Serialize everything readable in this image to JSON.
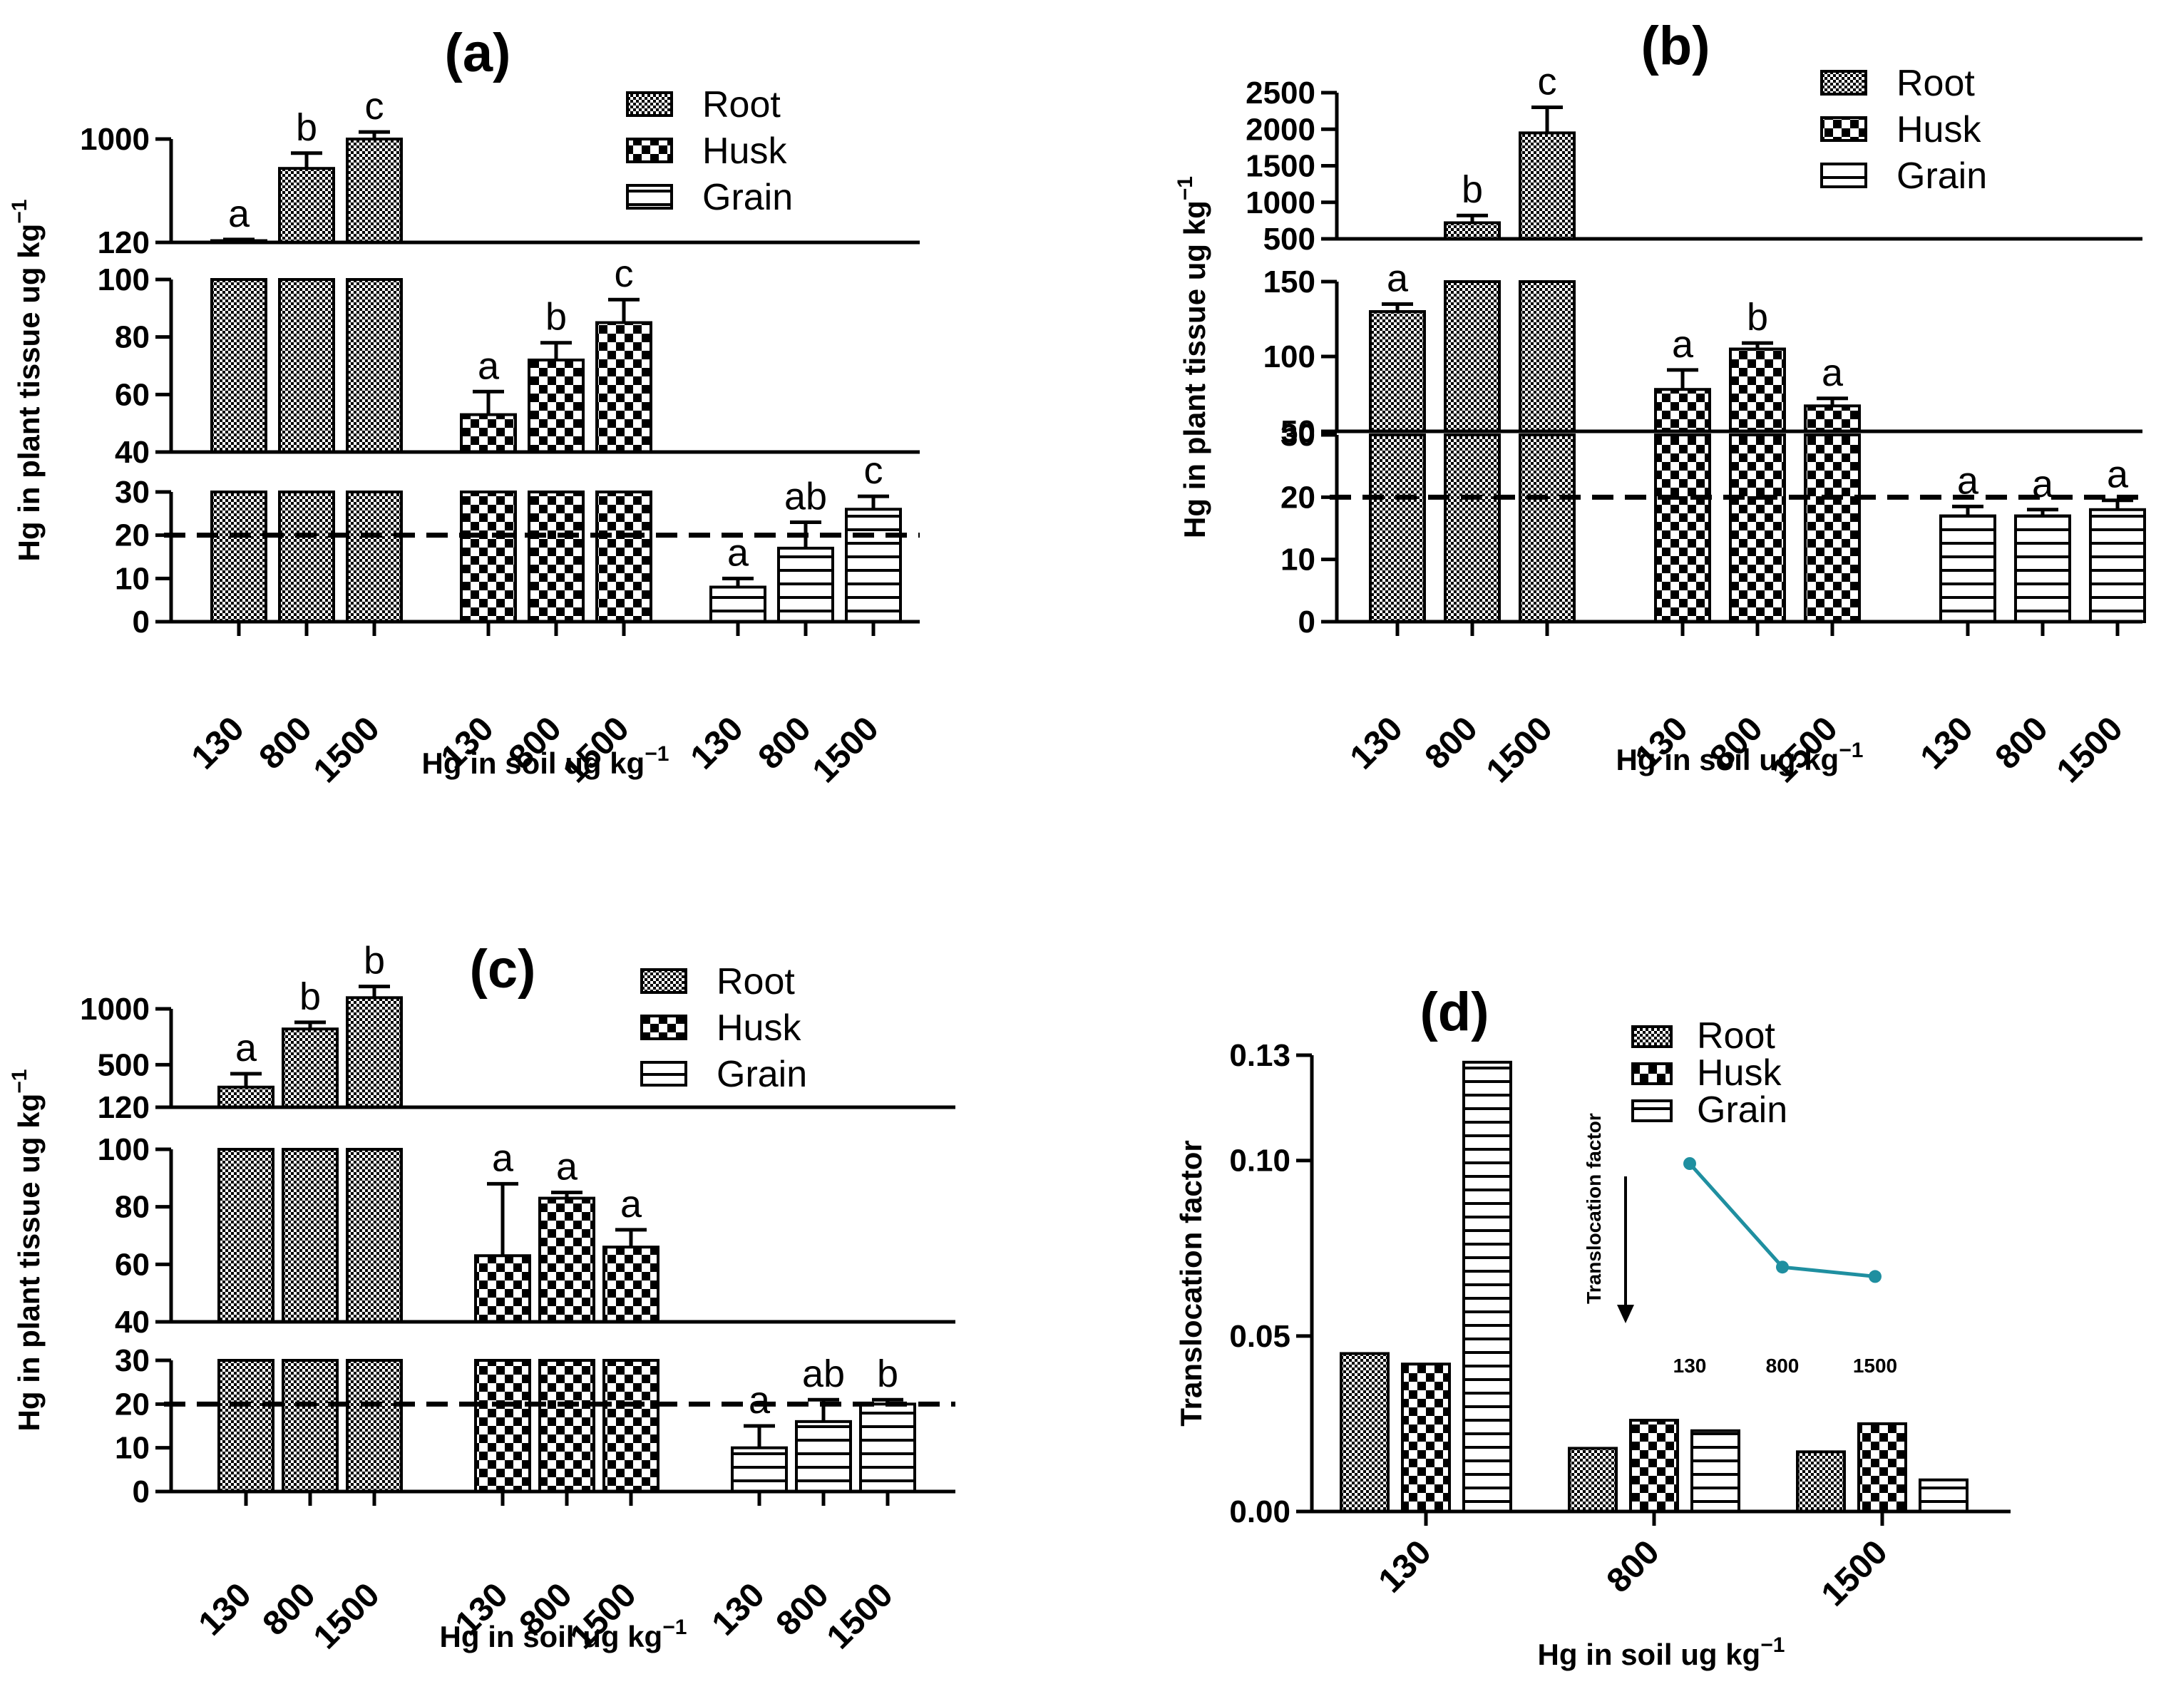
{
  "chart_data": [
    {
      "id": "a",
      "type": "bar",
      "title": "(a)",
      "xlabel": "Hg in soil ug kg",
      "xlabel_sup": "−1",
      "ylabel": "Hg in plant tissue ug kg",
      "ylabel_sup": "−1",
      "legend": [
        "Root",
        "Husk",
        "Grain"
      ],
      "groups": [
        {
          "name": "Root",
          "categories": [
            "130",
            "800",
            "1500"
          ],
          "values": [
            135,
            750,
            1000
          ],
          "errors": [
            10,
            130,
            60
          ],
          "letters": [
            "a",
            "b",
            "c"
          ]
        },
        {
          "name": "Husk",
          "categories": [
            "130",
            "800",
            "1500"
          ],
          "values": [
            53,
            72,
            85
          ],
          "errors": [
            8,
            6,
            8
          ],
          "letters": [
            "a",
            "b",
            "c"
          ]
        },
        {
          "name": "Grain",
          "categories": [
            "130",
            "800",
            "1500"
          ],
          "values": [
            8,
            17,
            26
          ],
          "errors": [
            2,
            6,
            3
          ],
          "letters": [
            "a",
            "ab",
            "c"
          ]
        }
      ],
      "y_segments": [
        {
          "range": [
            0,
            30
          ],
          "ticks": [
            "0",
            "10",
            "20",
            "30"
          ]
        },
        {
          "range": [
            40,
            100
          ],
          "ticks": [
            "40",
            "60",
            "80",
            "100"
          ]
        },
        {
          "range": [
            120,
            1000
          ],
          "ticks": [
            "120",
            "1000"
          ]
        }
      ],
      "reference_line": 20
    },
    {
      "id": "b",
      "type": "bar",
      "title": "(b)",
      "xlabel": "Hg in soil ug kg",
      "xlabel_sup": "−1",
      "ylabel": "Hg in plant tissue ug kg",
      "ylabel_sup": "−1",
      "legend": [
        "Root",
        "Husk",
        "Grain"
      ],
      "groups": [
        {
          "name": "Root",
          "categories": [
            "130",
            "800",
            "1500"
          ],
          "values": [
            130,
            720,
            1950
          ],
          "errors": [
            5,
            100,
            350
          ],
          "letters": [
            "a",
            "b",
            "c"
          ]
        },
        {
          "name": "Husk",
          "categories": [
            "130",
            "800",
            "1500"
          ],
          "values": [
            78,
            105,
            67
          ],
          "errors": [
            13,
            4,
            5
          ],
          "letters": [
            "a",
            "b",
            "a"
          ]
        },
        {
          "name": "Grain",
          "categories": [
            "130",
            "800",
            "1500"
          ],
          "values": [
            17,
            17,
            18
          ],
          "errors": [
            1.5,
            1,
            1.5
          ],
          "letters": [
            "a",
            "a",
            "a"
          ]
        }
      ],
      "y_segments": [
        {
          "range": [
            0,
            30
          ],
          "ticks": [
            "0",
            "10",
            "20",
            "30"
          ]
        },
        {
          "range": [
            50,
            150
          ],
          "ticks": [
            "50",
            "100",
            "150"
          ]
        },
        {
          "range": [
            500,
            2500
          ],
          "ticks": [
            "500",
            "1000",
            "1500",
            "2000",
            "2500"
          ]
        }
      ],
      "reference_line": 20
    },
    {
      "id": "c",
      "type": "bar",
      "title": "(c)",
      "xlabel": "Hg in soil ug kg",
      "xlabel_sup": "−1",
      "ylabel": "Hg in plant tissue ug kg",
      "ylabel_sup": "−1",
      "legend": [
        "Root",
        "Husk",
        "Grain"
      ],
      "groups": [
        {
          "name": "Root",
          "categories": [
            "130",
            "800",
            "1500"
          ],
          "values": [
            300,
            820,
            1100
          ],
          "errors": [
            120,
            60,
            100
          ],
          "letters": [
            "a",
            "b",
            "b"
          ]
        },
        {
          "name": "Husk",
          "categories": [
            "130",
            "800",
            "1500"
          ],
          "values": [
            63,
            83,
            66
          ],
          "errors": [
            25,
            2,
            6
          ],
          "letters": [
            "a",
            "a",
            "a"
          ]
        },
        {
          "name": "Grain",
          "categories": [
            "130",
            "800",
            "1500"
          ],
          "values": [
            10,
            16,
            20
          ],
          "errors": [
            5,
            5,
            1
          ],
          "letters": [
            "a",
            "ab",
            "b"
          ]
        }
      ],
      "y_segments": [
        {
          "range": [
            0,
            30
          ],
          "ticks": [
            "0",
            "10",
            "20",
            "30"
          ]
        },
        {
          "range": [
            40,
            100
          ],
          "ticks": [
            "40",
            "60",
            "80",
            "100"
          ]
        },
        {
          "range": [
            120,
            1000
          ],
          "ticks": [
            "120",
            "500",
            "1000"
          ]
        }
      ],
      "reference_line": 20
    },
    {
      "id": "d",
      "type": "bar",
      "title": "(d)",
      "xlabel": "Hg in soil ug kg",
      "xlabel_sup": "−1",
      "ylabel": "Translocation factor",
      "legend": [
        "Root",
        "Husk",
        "Grain"
      ],
      "categories": [
        "130",
        "800",
        "1500"
      ],
      "series": [
        {
          "name": "Root",
          "values": [
            0.045,
            0.018,
            0.017
          ]
        },
        {
          "name": "Husk",
          "values": [
            0.042,
            0.026,
            0.025
          ]
        },
        {
          "name": "Grain",
          "values": [
            0.128,
            0.023,
            0.009
          ]
        }
      ],
      "ylim": [
        0,
        0.13
      ],
      "yticks": [
        "0.00",
        "0.05",
        "0.10",
        "0.13"
      ],
      "inset": {
        "type": "line",
        "ylabel": "Translocation factor",
        "categories": [
          "130",
          "800",
          "1500"
        ],
        "values": [
          0.095,
          0.062,
          0.059
        ],
        "color": "#1f8fa0"
      }
    }
  ]
}
